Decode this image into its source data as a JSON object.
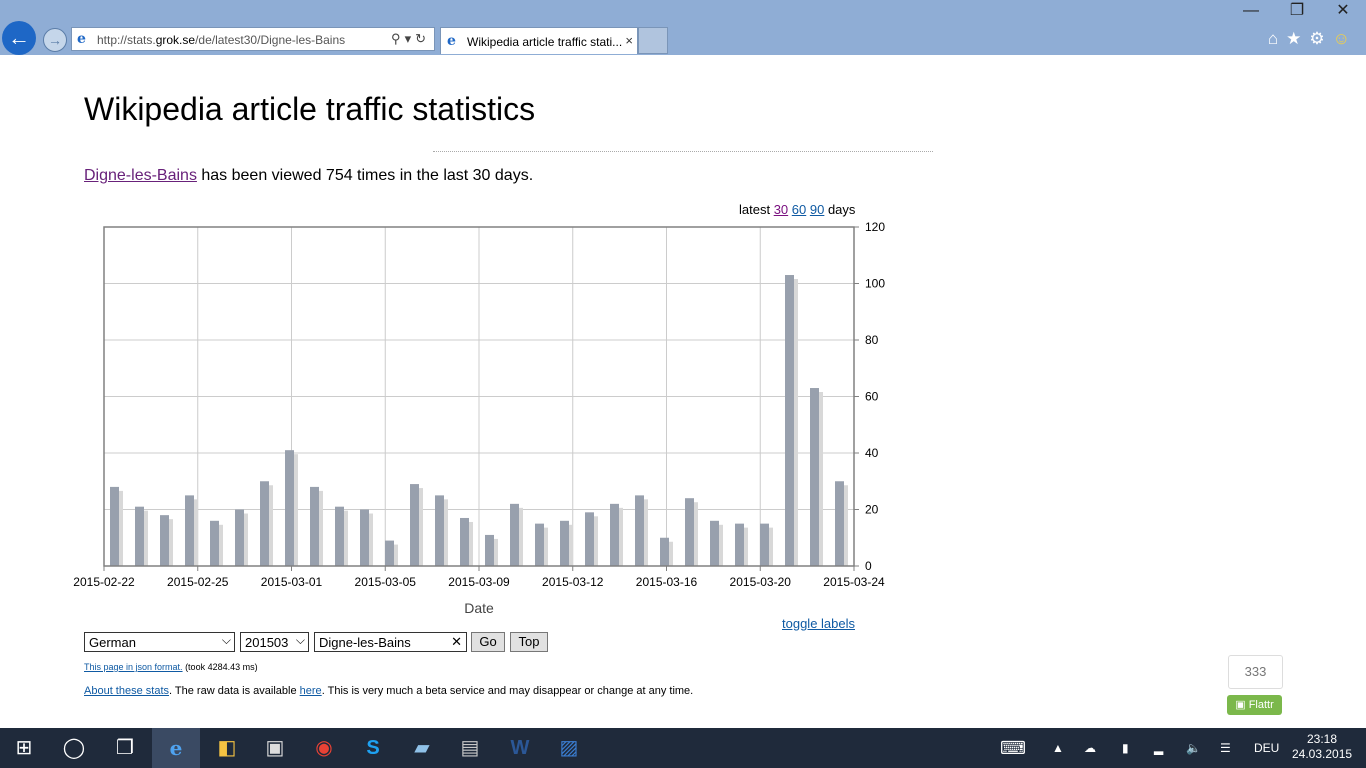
{
  "browser": {
    "url_prefix": "http://stats.",
    "url_domain": "grok.se",
    "url_path": "/de/latest30/Digne-les-Bains",
    "tab_title": "Wikipedia article traffic stati...",
    "tab_close": "×"
  },
  "page": {
    "title": "Wikipedia article traffic statistics",
    "article_link": "Digne-les-Bains",
    "summary_text": " has been viewed 754 times in the last 30 days.",
    "periods_prefix": "latest ",
    "period_30": "30",
    "period_60": "60",
    "period_90": "90",
    "periods_suffix": " days",
    "toggle_labels": "toggle labels"
  },
  "form": {
    "language": "German",
    "month": "201503",
    "article": "Digne-les-Bains",
    "go": "Go",
    "top": "Top"
  },
  "footer": {
    "json_link": "This page in json format.",
    "json_took": " (took 4284.43 ms)",
    "about_link": "About these stats",
    "about_text1": ". The raw data is available ",
    "here_link": "here",
    "about_text2": ". This is very much a beta service and may disappear or change at any time."
  },
  "flattr": {
    "count": "333",
    "label": "Flattr"
  },
  "taskbar": {
    "language": "DEU",
    "time": "23:18",
    "date": "24.03.2015"
  },
  "chart_data": {
    "type": "bar",
    "xlabel": "Date",
    "ylabel": "",
    "ylim": [
      0,
      120
    ],
    "yticks": [
      0,
      20,
      40,
      60,
      80,
      100,
      120
    ],
    "xtick_labels": [
      "2015-02-22",
      "2015-02-25",
      "2015-03-01",
      "2015-03-05",
      "2015-03-09",
      "2015-03-12",
      "2015-03-16",
      "2015-03-20",
      "2015-03-24"
    ],
    "grid": true,
    "colors": {
      "bar": "#98a0ad",
      "shadow": "#d8d8d8",
      "grid": "#cccccc",
      "axis": "#808080"
    },
    "categories": [
      "2015-02-22",
      "2015-02-23",
      "2015-02-24",
      "2015-02-25",
      "2015-02-26",
      "2015-02-27",
      "2015-02-28",
      "2015-03-01",
      "2015-03-02",
      "2015-03-03",
      "2015-03-04",
      "2015-03-05",
      "2015-03-06",
      "2015-03-07",
      "2015-03-08",
      "2015-03-09",
      "2015-03-10",
      "2015-03-11",
      "2015-03-12",
      "2015-03-13",
      "2015-03-14",
      "2015-03-15",
      "2015-03-16",
      "2015-03-17",
      "2015-03-18",
      "2015-03-19",
      "2015-03-20",
      "2015-03-21",
      "2015-03-22",
      "2015-03-23"
    ],
    "values": [
      28,
      21,
      18,
      25,
      16,
      20,
      30,
      41,
      28,
      21,
      20,
      9,
      29,
      25,
      17,
      11,
      22,
      15,
      16,
      19,
      22,
      25,
      10,
      24,
      16,
      15,
      15,
      103,
      63,
      30
    ]
  }
}
